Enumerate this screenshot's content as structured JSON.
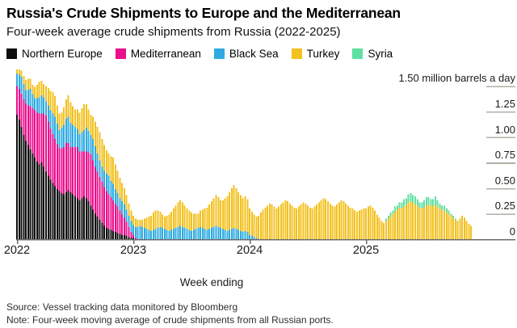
{
  "chart_data": {
    "type": "bar",
    "stacked": true,
    "title": "Russia's Crude Shipments to Europe and the Mediterranean",
    "subtitle": "Four-week average crude shipments from Russia (2022-2025)",
    "xlabel": "Week ending",
    "ylabel": "million barrels a day",
    "ylim": [
      0,
      1.5
    ],
    "grid": "right-side tick dashes only",
    "legend_position": "top",
    "x_axis": {
      "tick_labels": [
        "2022",
        "2023",
        "2024",
        "2025"
      ],
      "weeks_per_year": 52,
      "n_weeks": 204
    },
    "y_axis": {
      "top_label": "1.50 million barrels a day",
      "ticks": [
        {
          "value": 1.5,
          "label": "1.50 million barrels a day"
        },
        {
          "value": 1.25,
          "label": "1.25"
        },
        {
          "value": 1.0,
          "label": "1.00"
        },
        {
          "value": 0.75,
          "label": "0.75"
        },
        {
          "value": 0.5,
          "label": "0.50"
        },
        {
          "value": 0.25,
          "label": "0.25"
        },
        {
          "value": 0,
          "label": "0"
        }
      ]
    },
    "series": [
      {
        "name": "Northern Europe",
        "color": "#0d0d0d",
        "start_week": 0,
        "values": [
          1.22,
          1.17,
          1.1,
          1.02,
          0.96,
          0.92,
          0.88,
          0.84,
          0.8,
          0.76,
          0.73,
          0.75,
          0.71,
          0.66,
          0.62,
          0.58,
          0.55,
          0.52,
          0.49,
          0.47,
          0.45,
          0.44,
          0.46,
          0.48,
          0.46,
          0.44,
          0.42,
          0.4,
          0.38,
          0.4,
          0.42,
          0.4,
          0.37,
          0.33,
          0.29,
          0.25,
          0.22,
          0.19,
          0.16,
          0.13,
          0.11,
          0.1,
          0.09,
          0.08,
          0.07,
          0.06,
          0.05,
          0.04,
          0.04,
          0.03,
          0.02,
          0.01,
          0.01
        ]
      },
      {
        "name": "Mediterranean",
        "color": "#ea0f8c",
        "start_week": 0,
        "values": [
          0.28,
          0.3,
          0.33,
          0.35,
          0.37,
          0.39,
          0.42,
          0.44,
          0.46,
          0.48,
          0.5,
          0.48,
          0.52,
          0.55,
          0.53,
          0.5,
          0.48,
          0.46,
          0.44,
          0.42,
          0.44,
          0.46,
          0.48,
          0.46,
          0.44,
          0.46,
          0.48,
          0.5,
          0.48,
          0.46,
          0.44,
          0.46,
          0.48,
          0.5,
          0.48,
          0.46,
          0.44,
          0.42,
          0.4,
          0.38,
          0.36,
          0.34,
          0.32,
          0.3,
          0.28,
          0.26,
          0.23,
          0.2,
          0.17,
          0.14,
          0.1,
          0.06,
          0.03,
          0.01
        ]
      },
      {
        "name": "Black Sea",
        "color": "#2fabe1",
        "start_week": 0,
        "values": [
          0.12,
          0.14,
          0.16,
          0.15,
          0.13,
          0.15,
          0.17,
          0.14,
          0.12,
          0.14,
          0.16,
          0.18,
          0.16,
          0.14,
          0.16,
          0.18,
          0.2,
          0.22,
          0.2,
          0.18,
          0.2,
          0.22,
          0.24,
          0.26,
          0.24,
          0.22,
          0.2,
          0.18,
          0.17,
          0.19,
          0.21,
          0.23,
          0.21,
          0.19,
          0.21,
          0.2,
          0.18,
          0.16,
          0.15,
          0.16,
          0.17,
          0.18,
          0.16,
          0.16,
          0.14,
          0.13,
          0.12,
          0.13,
          0.13,
          0.12,
          0.11,
          0.11,
          0.1,
          0.11,
          0.12,
          0.13,
          0.12,
          0.11,
          0.1,
          0.09,
          0.08,
          0.09,
          0.1,
          0.11,
          0.12,
          0.11,
          0.1,
          0.09,
          0.08,
          0.09,
          0.1,
          0.11,
          0.12,
          0.13,
          0.12,
          0.11,
          0.1,
          0.09,
          0.08,
          0.09,
          0.1,
          0.11,
          0.12,
          0.11,
          0.1,
          0.09,
          0.1,
          0.11,
          0.12,
          0.13,
          0.12,
          0.11,
          0.1,
          0.09,
          0.08,
          0.09,
          0.1,
          0.11,
          0.1,
          0.09,
          0.08,
          0.07,
          0.08,
          0.07,
          0.04,
          0.03,
          0.02,
          0.01
        ]
      },
      {
        "name": "Turkey",
        "color": "#f3c120",
        "start_week": 0,
        "values": [
          0.04,
          0.05,
          0.06,
          0.08,
          0.1,
          0.11,
          0.1,
          0.09,
          0.11,
          0.13,
          0.15,
          0.14,
          0.13,
          0.15,
          0.17,
          0.19,
          0.21,
          0.2,
          0.18,
          0.16,
          0.15,
          0.17,
          0.19,
          0.21,
          0.2,
          0.18,
          0.17,
          0.19,
          0.21,
          0.23,
          0.25,
          0.23,
          0.21,
          0.2,
          0.22,
          0.24,
          0.26,
          0.28,
          0.27,
          0.25,
          0.23,
          0.22,
          0.24,
          0.26,
          0.24,
          0.22,
          0.2,
          0.18,
          0.16,
          0.14,
          0.12,
          0.1,
          0.09,
          0.08,
          0.07,
          0.06,
          0.07,
          0.09,
          0.11,
          0.13,
          0.15,
          0.17,
          0.18,
          0.17,
          0.15,
          0.13,
          0.12,
          0.14,
          0.16,
          0.18,
          0.2,
          0.22,
          0.24,
          0.25,
          0.24,
          0.22,
          0.2,
          0.19,
          0.18,
          0.16,
          0.15,
          0.14,
          0.16,
          0.18,
          0.2,
          0.22,
          0.24,
          0.26,
          0.28,
          0.3,
          0.29,
          0.27,
          0.28,
          0.31,
          0.34,
          0.37,
          0.4,
          0.42,
          0.4,
          0.37,
          0.35,
          0.33,
          0.34,
          0.32,
          0.26,
          0.24,
          0.22,
          0.21,
          0.23,
          0.26,
          0.29,
          0.31,
          0.33,
          0.35,
          0.34,
          0.32,
          0.3,
          0.32,
          0.34,
          0.36,
          0.38,
          0.37,
          0.35,
          0.33,
          0.31,
          0.3,
          0.32,
          0.34,
          0.36,
          0.35,
          0.33,
          0.31,
          0.3,
          0.32,
          0.34,
          0.36,
          0.38,
          0.4,
          0.39,
          0.37,
          0.35,
          0.33,
          0.32,
          0.34,
          0.36,
          0.38,
          0.37,
          0.35,
          0.33,
          0.31,
          0.3,
          0.28,
          0.27,
          0.28,
          0.29,
          0.3,
          0.3,
          0.32,
          0.33,
          0.31,
          0.28,
          0.24,
          0.21,
          0.18,
          0.16,
          0.18,
          0.2,
          0.22,
          0.25,
          0.27,
          0.29,
          0.31,
          0.3,
          0.32,
          0.34,
          0.36,
          0.37,
          0.36,
          0.34,
          0.33,
          0.31,
          0.3,
          0.31,
          0.33,
          0.34,
          0.33,
          0.32,
          0.34,
          0.32,
          0.3,
          0.29,
          0.28,
          0.26,
          0.25,
          0.23,
          0.21,
          0.19,
          0.17,
          0.2,
          0.23,
          0.21,
          0.18,
          0.15,
          0.13
        ]
      },
      {
        "name": "Syria",
        "color": "#5fdfa3",
        "start_week": 165,
        "values": [
          0.02,
          0.03,
          0.04,
          0.03,
          0.05,
          0.04,
          0.05,
          0.06,
          0.07,
          0.06,
          0.08,
          0.08,
          0.07,
          0.08,
          0.06,
          0.05,
          0.06,
          0.07,
          0.08,
          0.07,
          0.06,
          0.07,
          0.08,
          0.06,
          0.05,
          0.04,
          0.05,
          0.04,
          0.03,
          0.02,
          0.02,
          0.01,
          0.01
        ]
      }
    ]
  },
  "footer": {
    "source": "Source: Vessel tracking data monitored by Bloomberg",
    "note": "Note: Four-week moving average of crude shipments from all Russian ports."
  },
  "style_colors": {
    "axis_line": "#6b6b6b",
    "grid_tick": "#b3aea6",
    "text": "#1a1a1a"
  }
}
